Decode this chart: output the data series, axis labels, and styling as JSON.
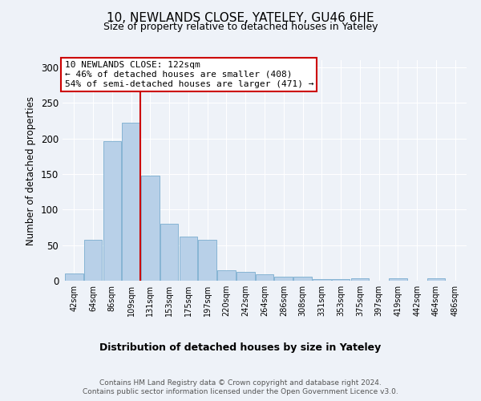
{
  "title1": "10, NEWLANDS CLOSE, YATELEY, GU46 6HE",
  "title2": "Size of property relative to detached houses in Yateley",
  "xlabel": "Distribution of detached houses by size in Yateley",
  "ylabel": "Number of detached properties",
  "footer1": "Contains HM Land Registry data © Crown copyright and database right 2024.",
  "footer2": "Contains public sector information licensed under the Open Government Licence v3.0.",
  "annotation_line1": "10 NEWLANDS CLOSE: 122sqm",
  "annotation_line2": "← 46% of detached houses are smaller (408)",
  "annotation_line3": "54% of semi-detached houses are larger (471) →",
  "bar_labels": [
    "42sqm",
    "64sqm",
    "86sqm",
    "109sqm",
    "131sqm",
    "153sqm",
    "175sqm",
    "197sqm",
    "220sqm",
    "242sqm",
    "264sqm",
    "286sqm",
    "308sqm",
    "331sqm",
    "353sqm",
    "375sqm",
    "397sqm",
    "419sqm",
    "442sqm",
    "464sqm",
    "486sqm"
  ],
  "bar_values": [
    10,
    58,
    196,
    222,
    148,
    80,
    62,
    58,
    15,
    12,
    9,
    6,
    6,
    2,
    2,
    3,
    0,
    3,
    0,
    3,
    0
  ],
  "bar_color": "#b8d0e8",
  "bar_edge_color": "#7aadcf",
  "red_line_x": 3.5,
  "red_line_color": "#cc0000",
  "annotation_box_color": "#ffffff",
  "annotation_box_edge_color": "#cc0000",
  "ylim": [
    0,
    310
  ],
  "yticks": [
    0,
    50,
    100,
    150,
    200,
    250,
    300
  ],
  "background_color": "#eef2f8",
  "axes_background": "#eef2f8",
  "grid_color": "#ffffff",
  "title1_fontsize": 11,
  "title2_fontsize": 9,
  "xlabel_fontsize": 9,
  "ylabel_fontsize": 8.5,
  "xtick_fontsize": 7,
  "ytick_fontsize": 8.5,
  "ann_fontsize": 8
}
